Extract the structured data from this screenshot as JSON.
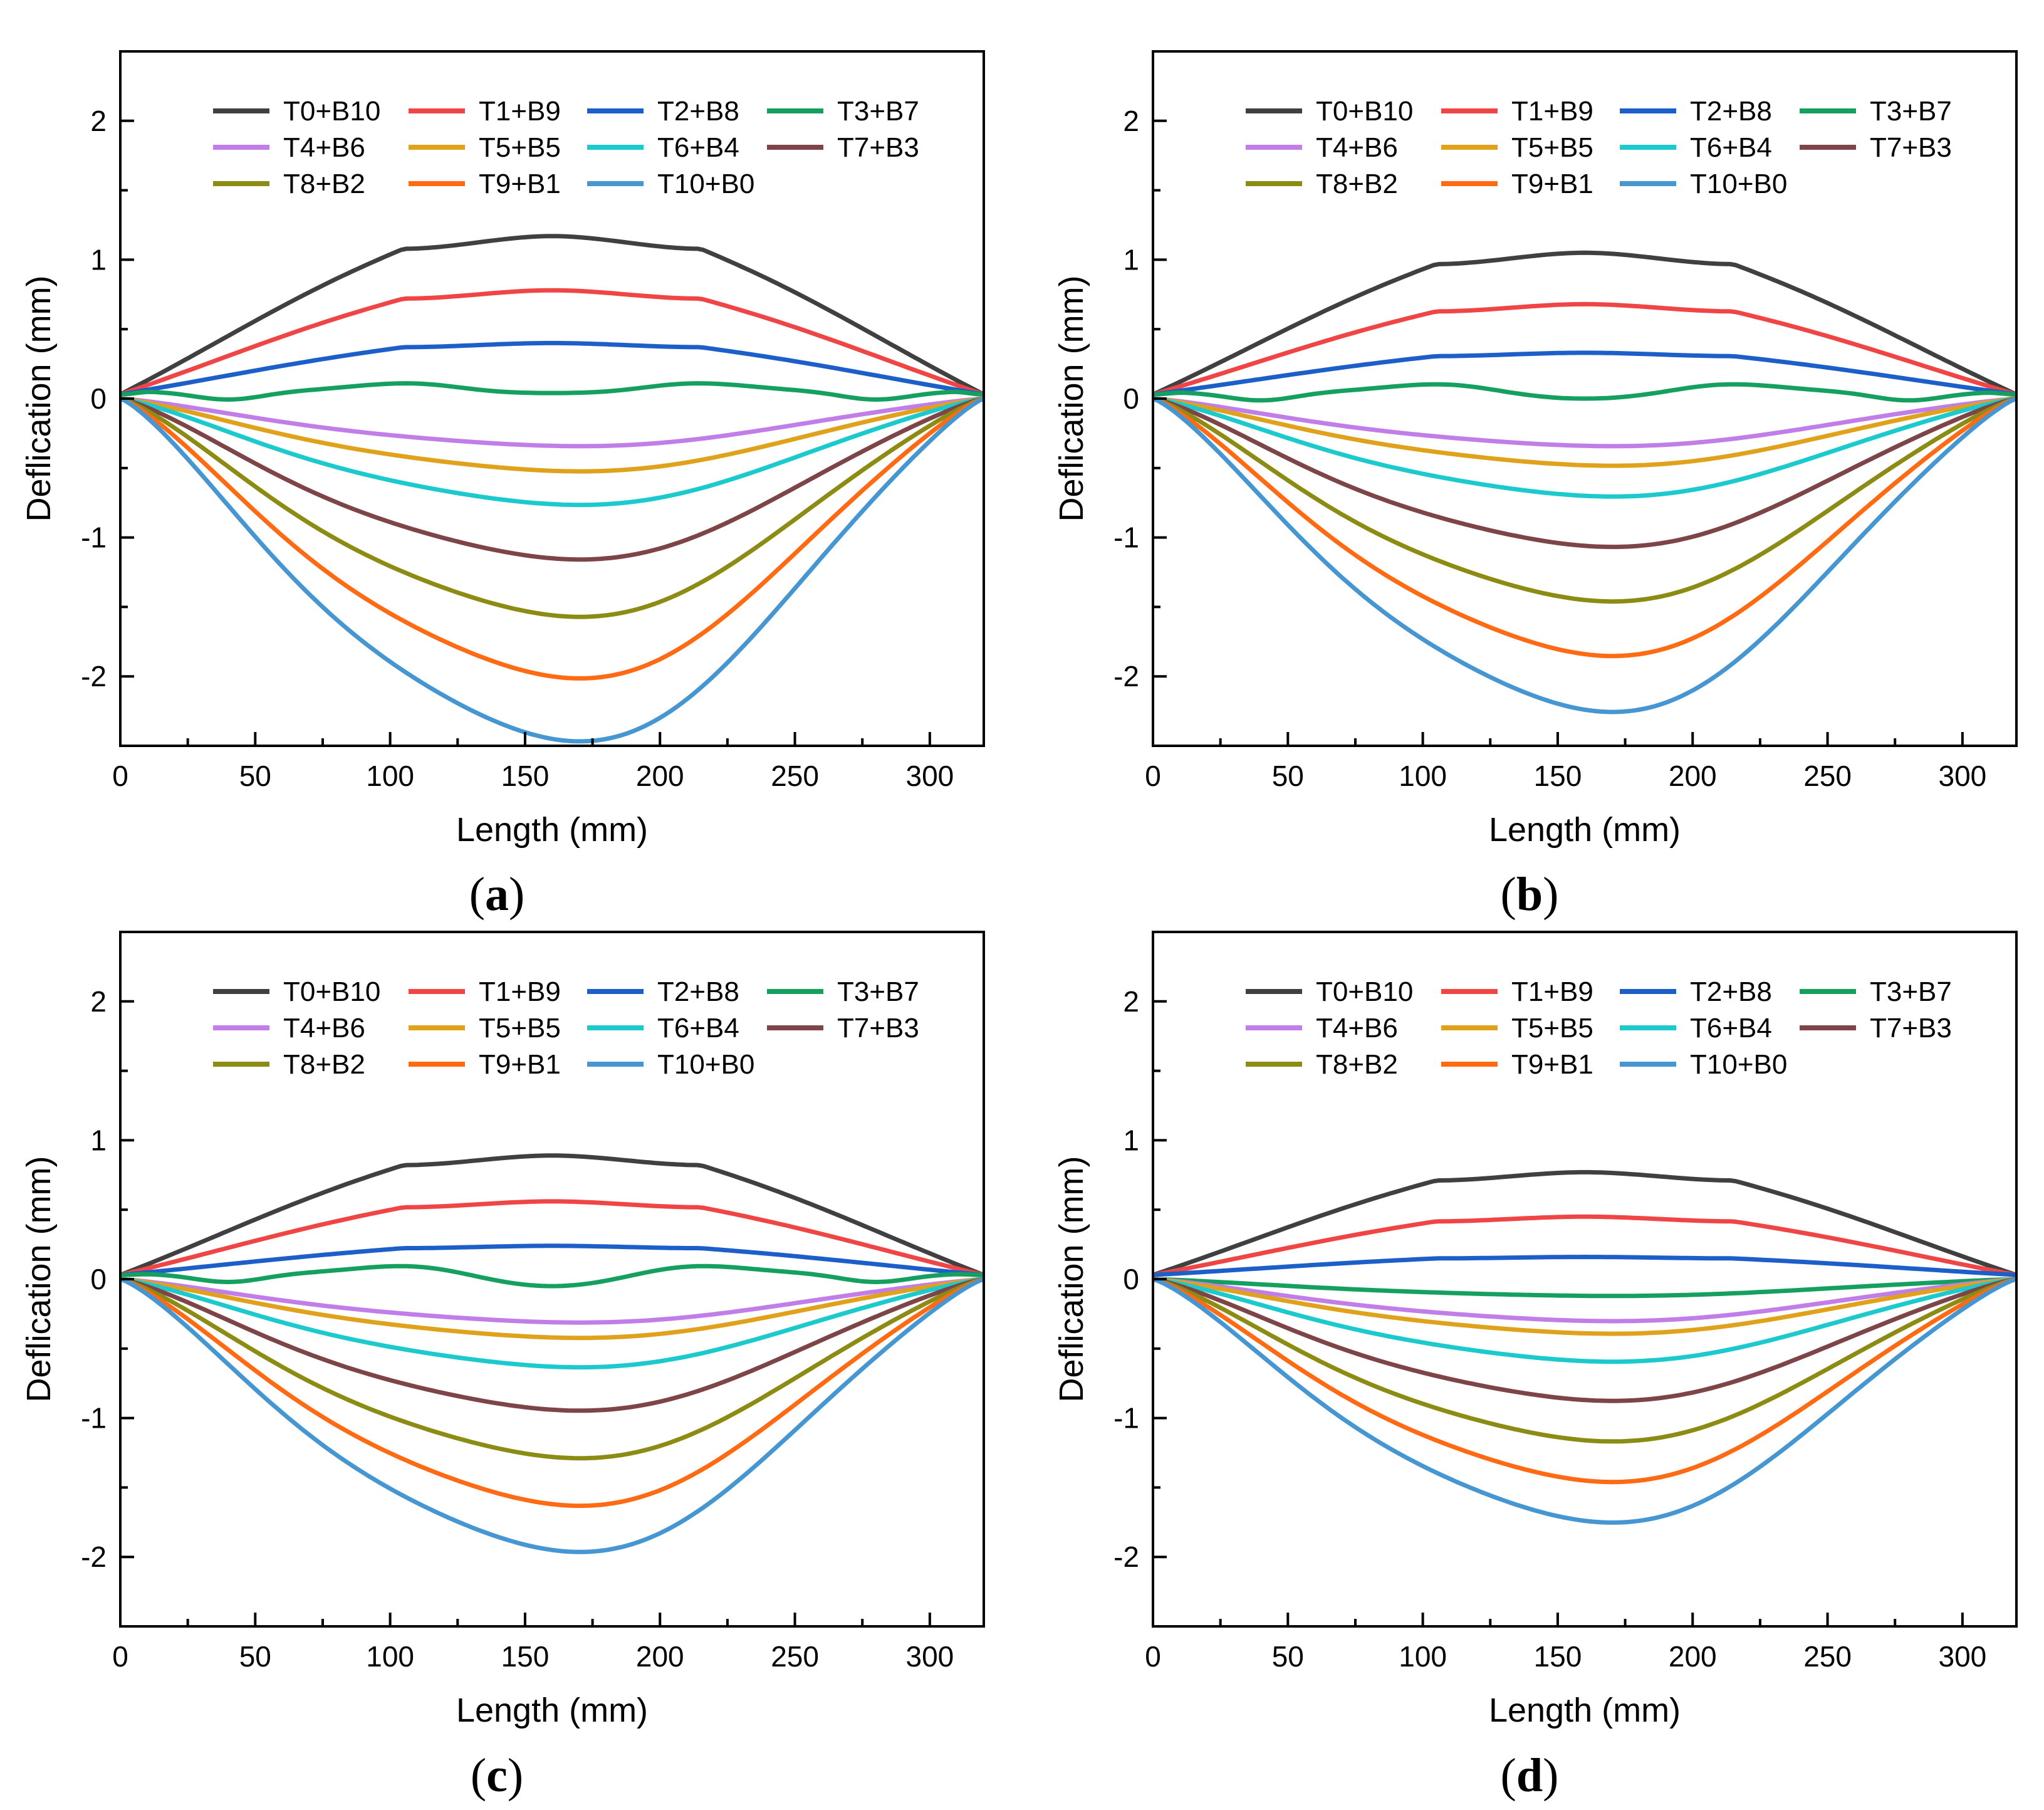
{
  "figure": {
    "colors": {
      "T0+B10": "#404040",
      "T1+B9": "#f04545",
      "T2+B8": "#1d5fc8",
      "T3+B7": "#15a060",
      "T4+B6": "#c27ee8",
      "T5+B5": "#e0a21b",
      "T6+B4": "#1cc9cd",
      "T7+B3": "#7d4548",
      "T8+B2": "#8c8c14",
      "T9+B1": "#ff6a13",
      "T10+B0": "#4696d2"
    }
  },
  "chart_data": [
    {
      "type": "line",
      "panel_label": "a",
      "xlabel": "Length (mm)",
      "ylabel": "Deflication (mm)",
      "xlim": [
        0,
        320
      ],
      "ylim": [
        -2.5,
        2.5
      ],
      "xticks": [
        "0",
        "50",
        "100",
        "150",
        "200",
        "250",
        "300"
      ],
      "yticks": [
        "-2",
        "-1",
        "0",
        "1",
        "2"
      ],
      "legend_position": "top",
      "series": [
        {
          "name": "T0+B10",
          "peak": 1.17
        },
        {
          "name": "T1+B9",
          "peak": 0.78
        },
        {
          "name": "T2+B8",
          "peak": 0.4
        },
        {
          "name": "T3+B7",
          "peak": 0.02
        },
        {
          "name": "T4+B6",
          "peak": -0.34
        },
        {
          "name": "T5+B5",
          "peak": -0.52
        },
        {
          "name": "T6+B4",
          "peak": -0.76
        },
        {
          "name": "T7+B3",
          "peak": -1.15
        },
        {
          "name": "T8+B2",
          "peak": -1.56
        },
        {
          "name": "T9+B1",
          "peak": -2.0
        },
        {
          "name": "T10+B0",
          "peak": -2.45
        }
      ]
    },
    {
      "type": "line",
      "panel_label": "b",
      "xlabel": "Length (mm)",
      "ylabel": "Deflication (mm)",
      "xlim": [
        0,
        320
      ],
      "ylim": [
        -2.5,
        2.5
      ],
      "xticks": [
        "0",
        "50",
        "100",
        "150",
        "200",
        "250",
        "300"
      ],
      "yticks": [
        "-2",
        "-1",
        "0",
        "1",
        "2"
      ],
      "legend_position": "top",
      "series": [
        {
          "name": "T0+B10",
          "peak": 1.05
        },
        {
          "name": "T1+B9",
          "peak": 0.68
        },
        {
          "name": "T2+B8",
          "peak": 0.33
        },
        {
          "name": "T3+B7",
          "peak": -0.02
        },
        {
          "name": "T4+B6",
          "peak": -0.34
        },
        {
          "name": "T5+B5",
          "peak": -0.48
        },
        {
          "name": "T6+B4",
          "peak": -0.7
        },
        {
          "name": "T7+B3",
          "peak": -1.06
        },
        {
          "name": "T8+B2",
          "peak": -1.45
        },
        {
          "name": "T9+B1",
          "peak": -1.84
        },
        {
          "name": "T10+B0",
          "peak": -2.24
        }
      ]
    },
    {
      "type": "line",
      "panel_label": "c",
      "xlabel": "Length (mm)",
      "ylabel": "Deflication (mm)",
      "xlim": [
        0,
        320
      ],
      "ylim": [
        -2.5,
        2.5
      ],
      "xticks": [
        "0",
        "50",
        "100",
        "150",
        "200",
        "250",
        "300"
      ],
      "yticks": [
        "-2",
        "-1",
        "0",
        "1",
        "2"
      ],
      "legend_position": "top",
      "series": [
        {
          "name": "T0+B10",
          "peak": 0.89
        },
        {
          "name": "T1+B9",
          "peak": 0.56
        },
        {
          "name": "T2+B8",
          "peak": 0.24
        },
        {
          "name": "T3+B7",
          "peak": -0.07
        },
        {
          "name": "T4+B6",
          "peak": -0.31
        },
        {
          "name": "T5+B5",
          "peak": -0.42
        },
        {
          "name": "T6+B4",
          "peak": -0.63
        },
        {
          "name": "T7+B3",
          "peak": -0.94
        },
        {
          "name": "T8+B2",
          "peak": -1.28
        },
        {
          "name": "T9+B1",
          "peak": -1.62
        },
        {
          "name": "T10+B0",
          "peak": -1.95
        }
      ]
    },
    {
      "type": "line",
      "panel_label": "d",
      "xlabel": "Length (mm)",
      "ylabel": "Deflication (mm)",
      "xlim": [
        0,
        320
      ],
      "ylim": [
        -2.5,
        2.5
      ],
      "xticks": [
        "0",
        "50",
        "100",
        "150",
        "200",
        "250",
        "300"
      ],
      "yticks": [
        "-2",
        "-1",
        "0",
        "1",
        "2"
      ],
      "legend_position": "top",
      "series": [
        {
          "name": "T0+B10",
          "peak": 0.77
        },
        {
          "name": "T1+B9",
          "peak": 0.45
        },
        {
          "name": "T2+B8",
          "peak": 0.16
        },
        {
          "name": "T3+B7",
          "peak": -0.12
        },
        {
          "name": "T4+B6",
          "peak": -0.3
        },
        {
          "name": "T5+B5",
          "peak": -0.39
        },
        {
          "name": "T6+B4",
          "peak": -0.59
        },
        {
          "name": "T7+B3",
          "peak": -0.87
        },
        {
          "name": "T8+B2",
          "peak": -1.16
        },
        {
          "name": "T9+B1",
          "peak": -1.45
        },
        {
          "name": "T10+B0",
          "peak": -1.74
        }
      ]
    }
  ]
}
